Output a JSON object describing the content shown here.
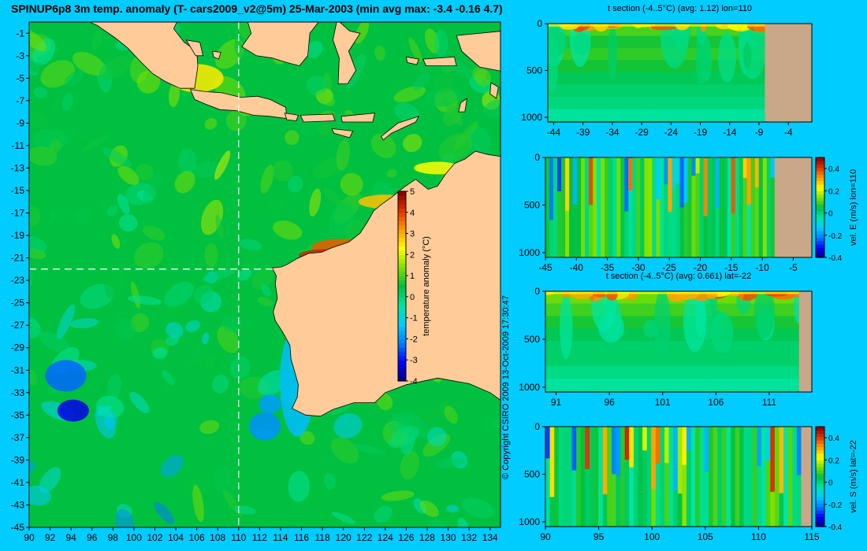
{
  "title": "SPINUP6p8 3m temp. anomaly (T- cars2009_v2@5m) 25-Mar-2003 (min avg max: -3.4 -0.16 4.7)",
  "copyright": "© Copyright CSIRO 2009   13-Oct-2009 17:30:47",
  "colors": {
    "background": "#00ccff",
    "land": "#ffcc99",
    "section_land": "#c8a888",
    "colormap": [
      "#000080",
      "#0000ff",
      "#0080ff",
      "#00ccff",
      "#00e5a0",
      "#00c040",
      "#80e000",
      "#ffff00",
      "#ff9900",
      "#e03000",
      "#800000"
    ]
  },
  "chart_data": [
    {
      "id": "map",
      "type": "heatmap",
      "xlim": [
        90,
        135
      ],
      "ylim": [
        -45,
        0
      ],
      "x_ticks": [
        "90",
        "92",
        "94",
        "96",
        "98",
        "100",
        "102",
        "104",
        "106",
        "108",
        "110",
        "112",
        "114",
        "116",
        "118",
        "120",
        "122",
        "124",
        "126",
        "128",
        "130",
        "132",
        "134"
      ],
      "y_ticks": [
        "-1",
        "-3",
        "-5",
        "-7",
        "-9",
        "-11",
        "-13",
        "-15",
        "-17",
        "-19",
        "-21",
        "-23",
        "-25",
        "-27",
        "-29",
        "-31",
        "-33",
        "-35",
        "-37",
        "-39",
        "-41",
        "-43",
        "-45"
      ],
      "crosshair": {
        "lon": 110,
        "lat": -22
      },
      "colorbar": {
        "range": [
          -4,
          5
        ],
        "ticks": [
          "5",
          "4",
          "3",
          "2",
          "1",
          "0",
          "-1",
          "-2",
          "-3",
          "-4"
        ],
        "label": "temperature anomaly (°C)"
      }
    },
    {
      "id": "sec1",
      "type": "heatmap",
      "title": "t section (-4..5°C) (avg: 1.12) lon=110",
      "xlim": [
        -45,
        0
      ],
      "ylim": [
        1050,
        0
      ],
      "x_ticks": [
        "-44",
        "-39",
        "-34",
        "-29",
        "-24",
        "-19",
        "-14",
        "-9",
        "-4"
      ],
      "y_ticks": [
        "0",
        "500",
        "1000"
      ],
      "land_from": -8
    },
    {
      "id": "sec2",
      "type": "heatmap",
      "xlim": [
        -45,
        -2
      ],
      "ylim": [
        1050,
        0
      ],
      "x_ticks": [
        "-45",
        "-40",
        "-35",
        "-30",
        "-25",
        "-20",
        "-15",
        "-10",
        "-5"
      ],
      "y_ticks": [
        "0",
        "500",
        "1000"
      ],
      "land_from": -8,
      "colorbar": {
        "range": [
          -0.4,
          0.5
        ],
        "ticks": [
          "0.4",
          "0.2",
          "0",
          "-0.2",
          "-0.4"
        ],
        "label": "vel. E (m/s) lon=110"
      }
    },
    {
      "id": "sec3",
      "type": "heatmap",
      "title": "t section (-4..5°C) (avg: 0.661) lat=-22",
      "xlim": [
        90,
        115
      ],
      "ylim": [
        1050,
        0
      ],
      "x_ticks": [
        "91",
        "96",
        "101",
        "106",
        "111"
      ],
      "y_ticks": [
        "0",
        "500",
        "1000"
      ],
      "land_from": 113.8
    },
    {
      "id": "sec4",
      "type": "heatmap",
      "xlim": [
        90,
        115
      ],
      "ylim": [
        1050,
        0
      ],
      "x_ticks": [
        "90",
        "95",
        "100",
        "105",
        "110",
        "115"
      ],
      "y_ticks": [
        "0",
        "500",
        "1000"
      ],
      "land_from": 114,
      "colorbar": {
        "range": [
          -0.4,
          0.5
        ],
        "ticks": [
          "0.4",
          "0.2",
          "0",
          "-0.2",
          "-0.4"
        ],
        "label": "vel. S (m/s) lat=-22"
      }
    }
  ]
}
